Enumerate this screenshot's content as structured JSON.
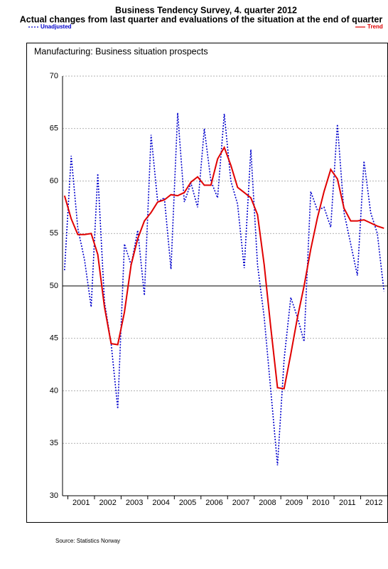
{
  "chart_data": {
    "type": "line",
    "title": "Business Tendency Survey, 4. quarter 2012",
    "subtitle": "Actual changes from last quarter and evaluations of the situation at the end of quarter",
    "panel_title": "Manufacturing:   Business situation prospects",
    "source": "Source: Statistics Norway",
    "x": [
      2000.875,
      2001.125,
      2001.375,
      2001.625,
      2001.875,
      2002.125,
      2002.375,
      2002.625,
      2002.875,
      2003.125,
      2003.375,
      2003.625,
      2003.875,
      2004.125,
      2004.375,
      2004.625,
      2004.875,
      2005.125,
      2005.375,
      2005.625,
      2005.875,
      2006.125,
      2006.375,
      2006.625,
      2006.875,
      2007.125,
      2007.375,
      2007.625,
      2007.875,
      2008.125,
      2008.375,
      2008.625,
      2008.875,
      2009.125,
      2009.375,
      2009.625,
      2009.875,
      2010.125,
      2010.375,
      2010.625,
      2010.875,
      2011.125,
      2011.375,
      2011.625,
      2011.875,
      2012.125,
      2012.375,
      2012.625,
      2012.875
    ],
    "series": [
      {
        "name": "Unadjusted",
        "color": "#0000cc",
        "dash": true,
        "values": [
          51.5,
          62.4,
          55.5,
          52.5,
          48.0,
          60.7,
          48.5,
          44.5,
          38.3,
          54.0,
          52.0,
          55.3,
          49.1,
          64.4,
          58.0,
          58.4,
          51.6,
          66.5,
          58.0,
          59.8,
          57.5,
          65.0,
          60.0,
          58.4,
          66.4,
          60.0,
          57.8,
          51.7,
          63.0,
          52.0,
          47.0,
          40.0,
          32.9,
          43.0,
          48.9,
          47.0,
          44.7,
          59.0,
          57.2,
          57.5,
          55.6,
          65.4,
          57.0,
          54.0,
          51.0,
          61.9,
          57.0,
          55.0,
          49.5
        ]
      },
      {
        "name": "Trend",
        "color": "#e00000",
        "dash": false,
        "values": [
          58.6,
          56.4,
          54.9,
          54.9,
          55.0,
          53.0,
          48.0,
          44.5,
          44.4,
          47.5,
          52.0,
          54.5,
          56.2,
          57.0,
          58.0,
          58.2,
          58.7,
          58.6,
          58.9,
          59.9,
          60.4,
          59.6,
          59.6,
          62.1,
          63.2,
          61.5,
          59.4,
          58.9,
          58.4,
          56.8,
          52.0,
          46.0,
          40.3,
          40.2,
          43.5,
          47.0,
          50.0,
          53.5,
          56.5,
          59.0,
          61.1,
          60.2,
          57.4,
          56.2,
          56.2,
          56.3,
          56.0,
          55.7,
          55.5
        ]
      }
    ],
    "xlim": [
      2000.8,
      2013
    ],
    "xticks": [
      {
        "value": 2001.5,
        "label": "2001"
      },
      {
        "value": 2002.5,
        "label": "2002"
      },
      {
        "value": 2003.5,
        "label": "2003"
      },
      {
        "value": 2004.5,
        "label": "2004"
      },
      {
        "value": 2005.5,
        "label": "2005"
      },
      {
        "value": 2006.5,
        "label": "2006"
      },
      {
        "value": 2007.5,
        "label": "2007"
      },
      {
        "value": 2008.5,
        "label": "2008"
      },
      {
        "value": 2009.5,
        "label": "2009"
      },
      {
        "value": 2010.5,
        "label": "2010"
      },
      {
        "value": 2011.5,
        "label": "2011"
      },
      {
        "value": 2012.5,
        "label": "2012"
      }
    ],
    "ylim": [
      30,
      70
    ],
    "yticks": [
      30,
      35,
      40,
      45,
      50,
      55,
      60,
      65,
      70
    ],
    "reference_line": 50,
    "grid": true
  }
}
